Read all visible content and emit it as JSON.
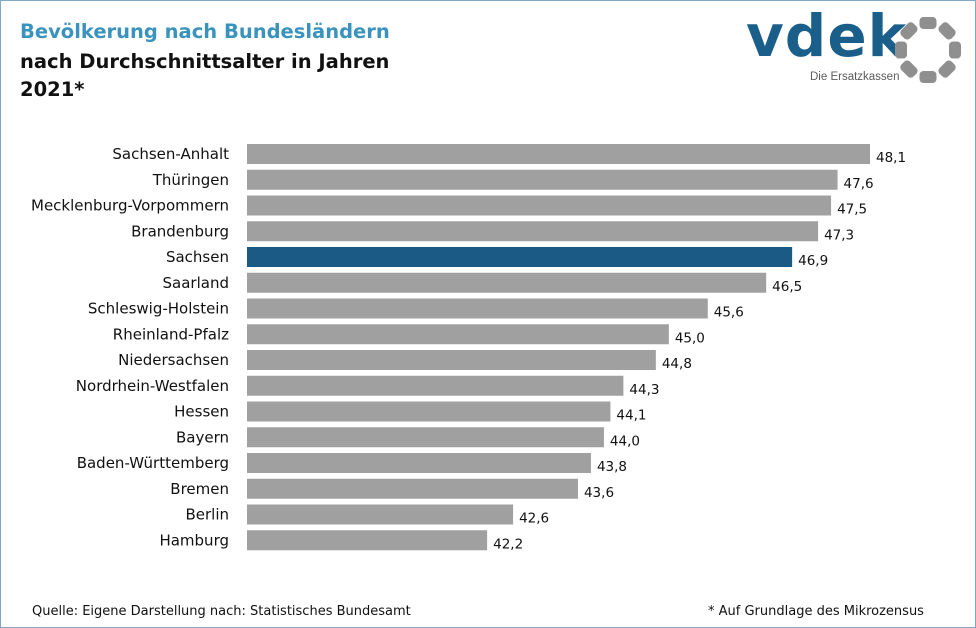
{
  "header": {
    "title": "Bevölkerung nach Bundesländern",
    "subtitle": "nach Durchschnittsalter in Jahren",
    "year": "2021*"
  },
  "logo": {
    "wordmark": "vdek",
    "tagline": "Die Ersatzkassen",
    "brand_color": "#1a5e8a",
    "ring_color": "#8f8f8f"
  },
  "footer": {
    "source": "Quelle: Eigene Darstellung nach: Statistisches Bundesamt",
    "footnote": "* Auf Grundlage des Mikrozensus"
  },
  "chart_data": {
    "type": "bar",
    "orientation": "horizontal",
    "categories": [
      "Sachsen-Anhalt",
      "Thüringen",
      "Mecklenburg-Vorpommern",
      "Brandenburg",
      "Sachsen",
      "Saarland",
      "Schleswig-Holstein",
      "Rheinland-Pfalz",
      "Niedersachsen",
      "Nordrhein-Westfalen",
      "Hessen",
      "Bayern",
      "Baden-Württemberg",
      "Bremen",
      "Berlin",
      "Hamburg"
    ],
    "values": [
      48.1,
      47.6,
      47.5,
      47.3,
      46.9,
      46.5,
      45.6,
      45.0,
      44.8,
      44.3,
      44.1,
      44.0,
      43.8,
      43.6,
      42.6,
      42.2
    ],
    "value_labels": [
      "48,1",
      "47,6",
      "47,5",
      "47,3",
      "46,9",
      "46,5",
      "45,6",
      "45,0",
      "44,8",
      "44,3",
      "44,1",
      "44,0",
      "43,8",
      "43,6",
      "42,6",
      "42,2"
    ],
    "highlight": "Sachsen",
    "bar_color": "#a0a0a0",
    "highlight_color": "#1a5a85",
    "xlim": [
      38.5,
      48.1
    ],
    "grid": false,
    "axis_visible": false
  }
}
